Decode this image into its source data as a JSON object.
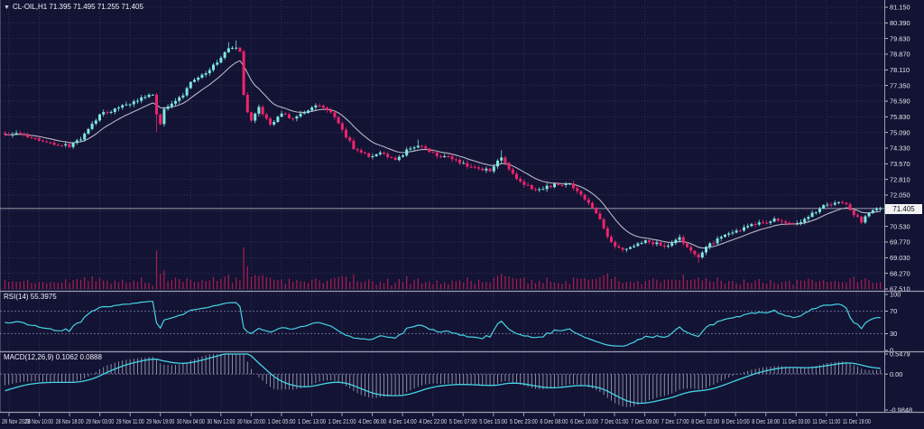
{
  "window": {
    "marker": "▼",
    "title": "CL-OIL,H1 71.395 71.495 71.255 71.405"
  },
  "chart_data": {
    "type": "candlestick",
    "symbol": "CL-OIL",
    "timeframe": "H1",
    "title": "CL-OIL,H1 71.395 71.495 71.255 71.405",
    "ohlc_last": {
      "open": 71.395,
      "high": 71.495,
      "low": 71.255,
      "close": 71.405
    },
    "current_price": "71.405",
    "bars_total": 232,
    "price_axis": {
      "min": 67.51,
      "max": 81.15,
      "labels": [
        "81.150",
        "80.390",
        "79.630",
        "78.870",
        "78.110",
        "77.350",
        "76.590",
        "75.830",
        "75.090",
        "74.330",
        "73.570",
        "72.810",
        "72.050",
        "71.290",
        "70.530",
        "69.770",
        "69.030",
        "68.270",
        "67.510"
      ]
    },
    "time_labels": [
      "28 Nov 2023",
      "28 Nov 10:00",
      "28 Nov 18:00",
      "29 Nov 03:00",
      "29 Nov 11:00",
      "29 Nov 19:00",
      "30 Nov 04:00",
      "30 Nov 12:00",
      "30 Nov 20:00",
      "1 Dec 05:00",
      "1 Dec 13:00",
      "1 Dec 21:00",
      "4 Dec 06:00",
      "4 Dec 14:00",
      "4 Dec 22:00",
      "5 Dec 07:00",
      "5 Dec 15:00",
      "5 Dec 23:00",
      "6 Dec 08:00",
      "6 Dec 16:00",
      "7 Dec 01:00",
      "7 Dec 09:00",
      "7 Dec 17:00",
      "8 Dec 02:00",
      "8 Dec 10:00",
      "8 Dec 18:00",
      "11 Dec 03:00",
      "11 Dec 11:00",
      "11 Dec 19:00"
    ],
    "close_anchors": [
      [
        0,
        74.95
      ],
      [
        3,
        75.05
      ],
      [
        6,
        74.85
      ],
      [
        10,
        74.7
      ],
      [
        14,
        74.5
      ],
      [
        17,
        74.45
      ],
      [
        20,
        74.8
      ],
      [
        23,
        75.5
      ],
      [
        25,
        75.95
      ],
      [
        28,
        76.15
      ],
      [
        31,
        76.45
      ],
      [
        34,
        76.55
      ],
      [
        37,
        76.85
      ],
      [
        39,
        76.95
      ],
      [
        40,
        75.95
      ],
      [
        41,
        75.55
      ],
      [
        42,
        76.2
      ],
      [
        45,
        76.55
      ],
      [
        47,
        76.9
      ],
      [
        49,
        77.5
      ],
      [
        52,
        77.85
      ],
      [
        55,
        78.3
      ],
      [
        57,
        78.7
      ],
      [
        59,
        79.15
      ],
      [
        61,
        79.2
      ],
      [
        62,
        79.0
      ],
      [
        63,
        76.95
      ],
      [
        64,
        76.1
      ],
      [
        65,
        75.7
      ],
      [
        67,
        76.3
      ],
      [
        70,
        75.5
      ],
      [
        73,
        76.0
      ],
      [
        76,
        75.75
      ],
      [
        79,
        76.1
      ],
      [
        83,
        76.45
      ],
      [
        86,
        76.1
      ],
      [
        88,
        75.6
      ],
      [
        90,
        74.9
      ],
      [
        92,
        74.35
      ],
      [
        96,
        73.9
      ],
      [
        99,
        74.15
      ],
      [
        103,
        73.7
      ],
      [
        106,
        74.2
      ],
      [
        109,
        74.45
      ],
      [
        114,
        73.95
      ],
      [
        118,
        73.85
      ],
      [
        123,
        73.4
      ],
      [
        128,
        73.25
      ],
      [
        131,
        73.9
      ],
      [
        134,
        73.05
      ],
      [
        137,
        72.6
      ],
      [
        140,
        72.3
      ],
      [
        143,
        72.45
      ],
      [
        146,
        72.6
      ],
      [
        149,
        72.55
      ],
      [
        152,
        72.1
      ],
      [
        155,
        71.5
      ],
      [
        157,
        70.9
      ],
      [
        159,
        70.1
      ],
      [
        161,
        69.6
      ],
      [
        163,
        69.35
      ],
      [
        166,
        69.6
      ],
      [
        169,
        69.85
      ],
      [
        172,
        69.7
      ],
      [
        175,
        69.6
      ],
      [
        178,
        69.95
      ],
      [
        180,
        69.5
      ],
      [
        183,
        69.1
      ],
      [
        185,
        69.55
      ],
      [
        188,
        69.9
      ],
      [
        191,
        70.15
      ],
      [
        194,
        70.35
      ],
      [
        197,
        70.6
      ],
      [
        200,
        70.7
      ],
      [
        203,
        70.9
      ],
      [
        206,
        70.65
      ],
      [
        209,
        70.7
      ],
      [
        212,
        71.0
      ],
      [
        215,
        71.45
      ],
      [
        218,
        71.65
      ],
      [
        220,
        71.75
      ],
      [
        222,
        71.6
      ],
      [
        224,
        71.1
      ],
      [
        226,
        70.8
      ],
      [
        228,
        71.15
      ],
      [
        230,
        71.395
      ],
      [
        231,
        71.405
      ]
    ],
    "wick_overrides": {
      "40": -0.85,
      "59": 0.3,
      "61": 0.35,
      "109": 0.3,
      "131": 0.35,
      "183": -0.25
    },
    "indicators": {
      "rsi": {
        "label": "RSI(14) 55.3975",
        "period": 14,
        "last": 55.3975,
        "range": [
          0,
          100
        ],
        "axis_labels": [
          "100",
          "70",
          "30",
          "0"
        ],
        "level_lines": [
          70,
          30
        ]
      },
      "macd": {
        "label": "MACD(12,26,9) 0.1062 0.0888",
        "params": [
          12,
          26,
          9
        ],
        "last_macd": 0.1062,
        "last_signal": 0.0888,
        "range": [
          -0.9848,
          0.5479
        ],
        "axis_labels": [
          "0.5479",
          "0.00",
          "-0.9848"
        ]
      }
    },
    "colors": {
      "background": "#131334",
      "bull": "#7de8e0",
      "bear": "#f1246b",
      "ma_line": "#b9b6c4",
      "indicator_line": "#46d4e4",
      "volume": "#b51e52",
      "histogram": "#b9bac9",
      "grid": "#30305a",
      "level_dash": "#6a6b92",
      "price_line": "#c9cad4",
      "axis_text": "#e6e6ee",
      "time_text": "#d9dae4",
      "separator": "#9b9cae",
      "label_bg": "#f2f2f4"
    }
  }
}
